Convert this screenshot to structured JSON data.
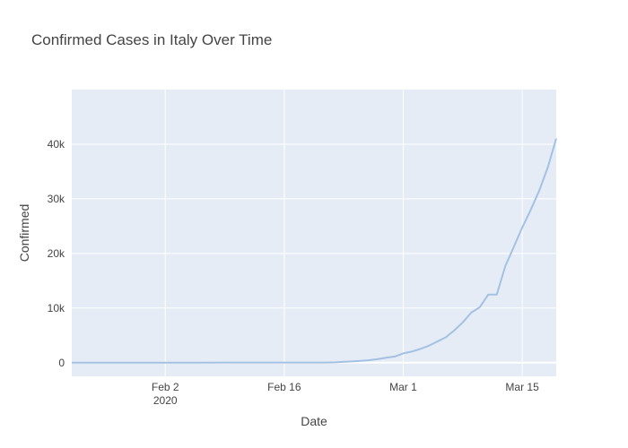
{
  "chart_data": {
    "type": "line",
    "title": "Confirmed Cases in Italy Over Time",
    "xlabel": "Date",
    "ylabel": "Confirmed",
    "x_axis_type": "date",
    "xlim": [
      "2020-01-22",
      "2020-03-19"
    ],
    "ylim": [
      -2500,
      50000
    ],
    "x_ticks": [
      {
        "date": "2020-02-02",
        "label": "Feb 2",
        "sublabel": "2020"
      },
      {
        "date": "2020-02-16",
        "label": "Feb 16",
        "sublabel": ""
      },
      {
        "date": "2020-03-01",
        "label": "Mar 1",
        "sublabel": ""
      },
      {
        "date": "2020-03-15",
        "label": "Mar 15",
        "sublabel": ""
      }
    ],
    "y_ticks": [
      {
        "value": 0,
        "label": "0"
      },
      {
        "value": 10000,
        "label": "10k"
      },
      {
        "value": 20000,
        "label": "20k"
      },
      {
        "value": 30000,
        "label": "30k"
      },
      {
        "value": 40000,
        "label": "40k"
      }
    ],
    "grid": true,
    "legend": "none",
    "colors": {
      "line": "#a3c1e3",
      "plot_bg": "#e5ecf6",
      "grid": "#ffffff",
      "text": "#444444"
    },
    "series": [
      {
        "x": [
          "2020-01-22",
          "2020-01-31",
          "2020-02-06",
          "2020-02-21",
          "2020-02-22",
          "2020-02-23",
          "2020-02-24",
          "2020-02-25",
          "2020-02-26",
          "2020-02-27",
          "2020-02-28",
          "2020-02-29",
          "2020-03-01",
          "2020-03-02",
          "2020-03-03",
          "2020-03-04",
          "2020-03-05",
          "2020-03-06",
          "2020-03-07",
          "2020-03-08",
          "2020-03-09",
          "2020-03-10",
          "2020-03-11",
          "2020-03-12",
          "2020-03-13",
          "2020-03-14",
          "2020-03-15",
          "2020-03-16",
          "2020-03-17",
          "2020-03-18",
          "2020-03-19"
        ],
        "y": [
          0,
          2,
          3,
          20,
          62,
          155,
          229,
          322,
          453,
          655,
          888,
          1128,
          1694,
          2036,
          2502,
          3089,
          3858,
          4636,
          5883,
          7375,
          9172,
          10149,
          12462,
          12462,
          17660,
          21157,
          24747,
          27980,
          31506,
          35713,
          41035
        ]
      }
    ]
  }
}
